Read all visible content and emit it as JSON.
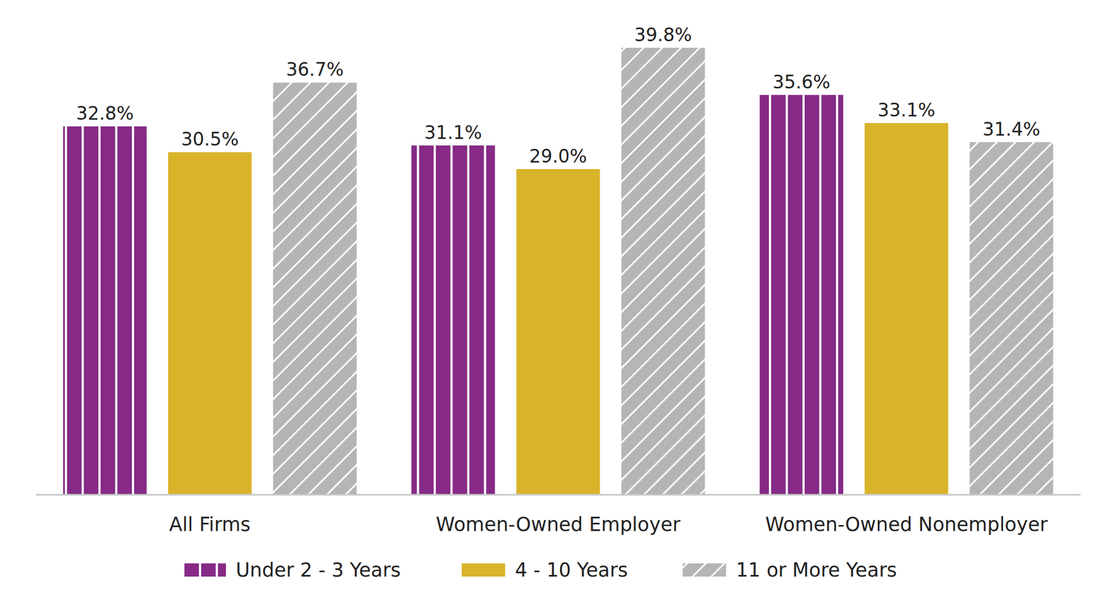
{
  "chart_data": {
    "type": "bar",
    "categories": [
      "All Firms",
      "Women-Owned Employer",
      "Women-Owned Nonemployer"
    ],
    "series": [
      {
        "name": "Under 2 - 3 Years",
        "color": "#862a86",
        "values": [
          32.8,
          31.1,
          35.6
        ],
        "value_labels": [
          "32.8%",
          "31.1%",
          "35.6%"
        ]
      },
      {
        "name": "4 - 10 Years",
        "color": "#d9b42b",
        "values": [
          30.5,
          29.0,
          33.1
        ],
        "value_labels": [
          "30.5%",
          "29.0%",
          "33.1%"
        ]
      },
      {
        "name": "11 or More Years",
        "color": "#b5b5b5",
        "values": [
          36.7,
          39.8,
          31.4
        ],
        "value_labels": [
          "36.7%",
          "39.8%",
          "31.4%"
        ]
      }
    ],
    "ylim": [
      0,
      42
    ],
    "data_labels": true,
    "tick_labels": "x",
    "legend": "bottom"
  }
}
